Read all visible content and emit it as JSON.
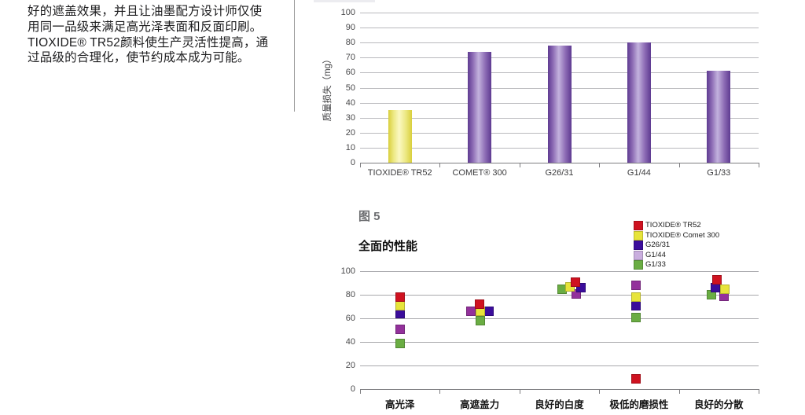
{
  "left_column": {
    "paragraph": "好的遮盖效果，并且让油墨配方设计师仅使\n用同一品级来满足高光泽表面和反面印刷。\nTIOXIDE® TR52颜料使生产灵活性提高，通\n过品级的合理化，使节约成本成为可能。"
  },
  "figure5_header": {
    "fig_label": "图 5",
    "subtitle": "全面的性能"
  },
  "chart_data": [
    {
      "type": "bar",
      "title": "",
      "ylabel": "质量损失（mg）",
      "xlabel": "",
      "categories": [
        "TIOXIDE® TR52",
        "COMET® 300",
        "G26/31",
        "G1/44",
        "G1/33"
      ],
      "values": [
        35,
        74,
        78,
        80,
        61
      ],
      "bar_styles": [
        "yellow",
        "purple",
        "purple",
        "purple",
        "purple"
      ],
      "palette": {
        "yellow": {
          "edge": "#d9cf3c",
          "mid": "#ece882",
          "center": "#fbf8c2"
        },
        "purple": {
          "edge": "#5e3a91",
          "mid": "#8d6cb5",
          "center": "#c3b2dd"
        }
      },
      "ylim": [
        0,
        100
      ],
      "ytick_step": 10,
      "grid": true,
      "legend_position": "none"
    },
    {
      "type": "scatter",
      "title": "全面的性能",
      "fig_label": "图 5",
      "xlabel": "",
      "ylabel": "",
      "categories": [
        "高光泽",
        "高遮盖力",
        "良好的白度",
        "极低的磨损性",
        "良好的分散"
      ],
      "series": [
        {
          "name": "TIOXIDE® TR52",
          "color": "#cf1220",
          "values": [
            78,
            72,
            91,
            9,
            93
          ],
          "dx": [
            0,
            0,
            20,
            -4,
            -2
          ]
        },
        {
          "name": "TIOXIDE® Comet 300",
          "color": "#e7e43b",
          "values": [
            71,
            66,
            87,
            78,
            85
          ],
          "dx": [
            0,
            1,
            13,
            -4,
            8
          ]
        },
        {
          "name": "G26/31",
          "color": "#3b0d9b",
          "values": [
            64,
            66,
            86,
            71,
            86
          ],
          "dx": [
            0,
            12,
            27,
            -4,
            -4
          ]
        },
        {
          "name": "G1/44",
          "color": "#93319b",
          "legend_color": "#c9aede",
          "values": [
            51,
            66,
            81,
            88,
            79
          ],
          "dx": [
            0,
            -11,
            21,
            -4,
            7
          ]
        },
        {
          "name": "G1/33",
          "color": "#6aad43",
          "values": [
            39,
            58,
            85,
            61,
            80
          ],
          "dx": [
            0,
            1,
            3,
            -4,
            -9
          ]
        }
      ],
      "ylim": [
        0,
        100
      ],
      "ytick_step": 20,
      "grid": true,
      "legend_position": "top-right"
    }
  ]
}
